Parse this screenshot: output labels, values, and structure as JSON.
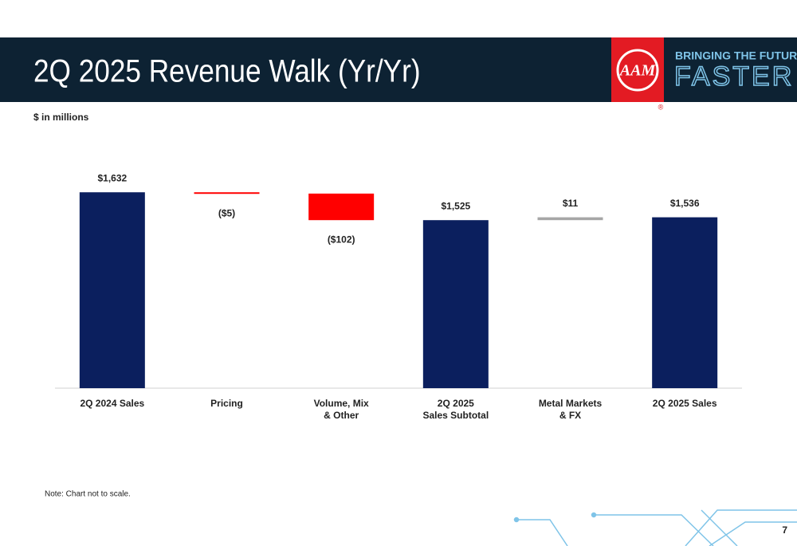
{
  "slide": {
    "title": "2Q 2025 Revenue Walk (Yr/Yr)",
    "tagline_top": "BRINGING THE FUTURE",
    "tagline_bottom": "FASTER",
    "logo": "AAM",
    "registered": "®",
    "page_number": "7"
  },
  "chart_data": {
    "type": "waterfall",
    "subtitle": "$ in millions",
    "note": "Note: Chart not to scale.",
    "categories": [
      "2Q 2024 Sales",
      "Pricing",
      "Volume, Mix\n& Other",
      "2Q 2025\nSales Subtotal",
      "Metal Markets\n& FX",
      "2Q 2025 Sales"
    ],
    "values": [
      1632,
      -5,
      -102,
      1525,
      11,
      1536
    ],
    "value_labels": [
      "$1,632",
      "($5)",
      "($102)",
      "$1,525",
      "$11",
      "$1,536"
    ],
    "totals": [
      true,
      false,
      false,
      true,
      false,
      true
    ],
    "colors": {
      "total": "#0b1f5e",
      "decrease": "#ff0000",
      "increase": "#a6a6a6"
    },
    "ylim": [
      880,
      1700
    ]
  }
}
